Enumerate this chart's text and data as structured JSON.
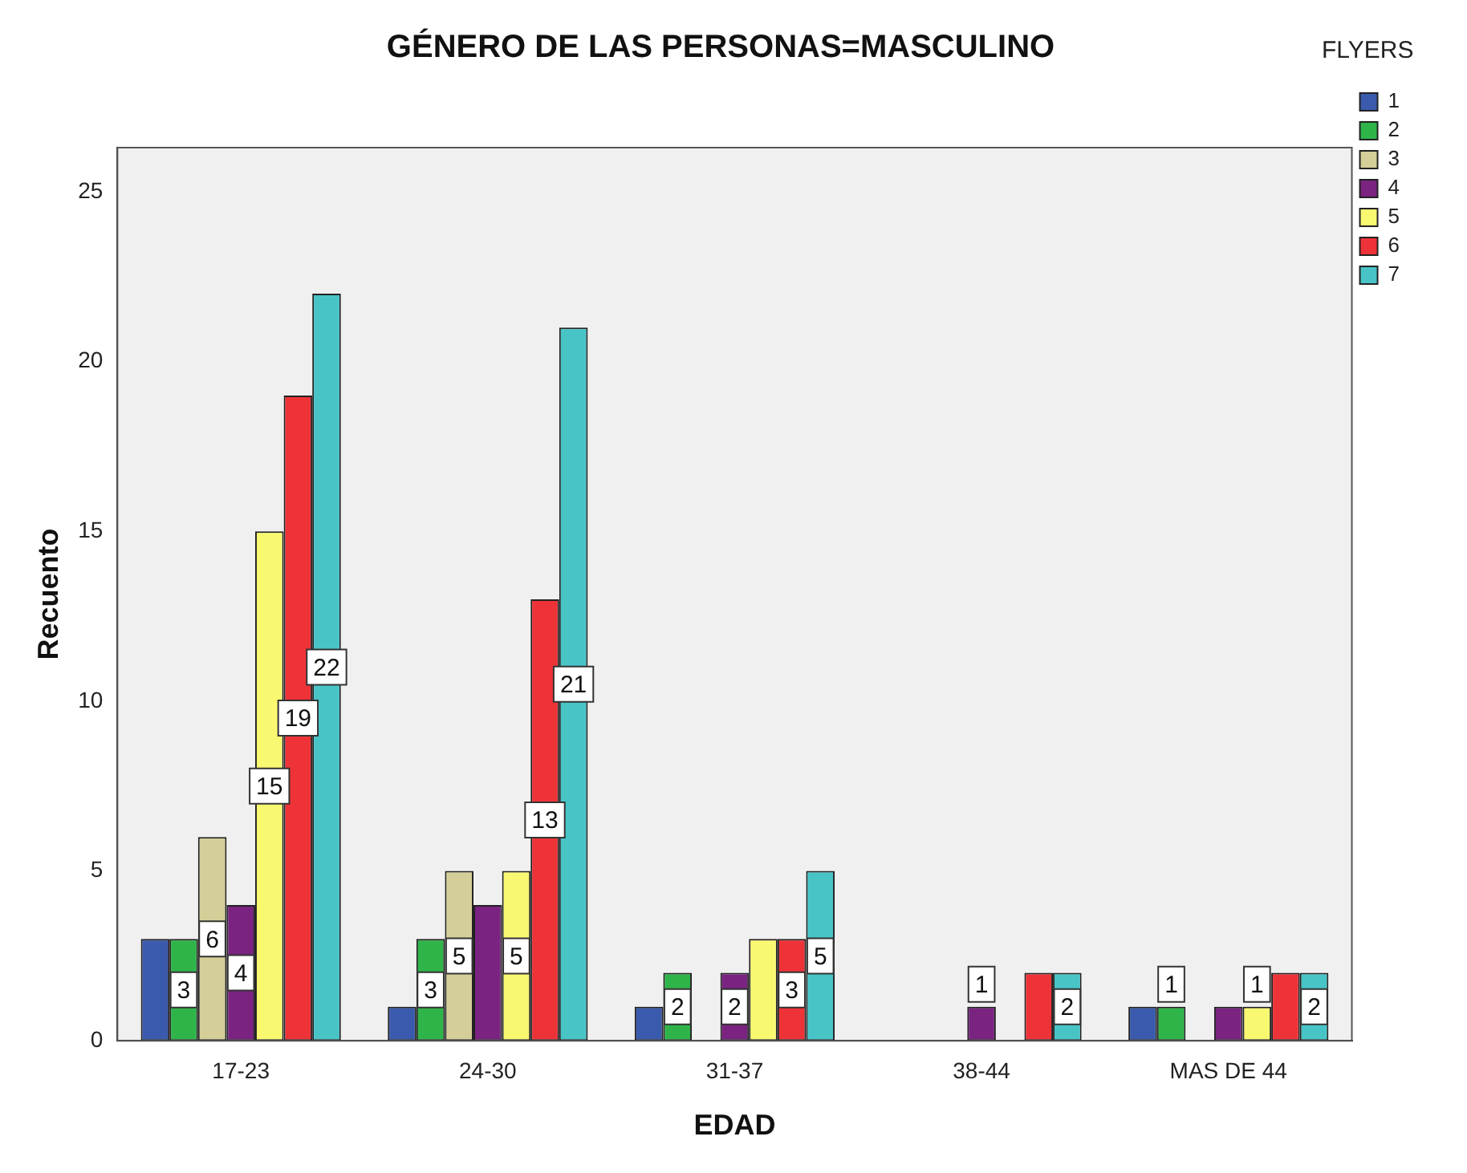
{
  "chart_data": {
    "type": "bar",
    "title": "GÉNERO DE LAS PERSONAS=MASCULINO",
    "xlabel": "EDAD",
    "ylabel": "Recuento",
    "legend_title": "FLYERS",
    "categories": [
      "17-23",
      "24-30",
      "31-37",
      "38-44",
      "MAS DE 44"
    ],
    "ylim": [
      0,
      26.3
    ],
    "yticks": [
      0,
      5,
      10,
      15,
      20,
      25
    ],
    "grid": false,
    "legend": "top right",
    "series": [
      {
        "name": "1",
        "color": "#3a5bad",
        "values": [
          3,
          1,
          1,
          0,
          1
        ],
        "value_labels": [
          null,
          null,
          null,
          null,
          null
        ]
      },
      {
        "name": "2",
        "color": "#2fb44a",
        "values": [
          3,
          3,
          2,
          0,
          1
        ],
        "value_labels": [
          "3",
          "3",
          "2",
          null,
          "1"
        ]
      },
      {
        "name": "3",
        "color": "#d4cf98",
        "values": [
          6,
          5,
          0,
          0,
          0
        ],
        "value_labels": [
          "6",
          "5",
          null,
          null,
          null
        ]
      },
      {
        "name": "4",
        "color": "#7a2381",
        "values": [
          4,
          4,
          2,
          1,
          1
        ],
        "value_labels": [
          "4",
          null,
          "2",
          "1",
          null
        ]
      },
      {
        "name": "5",
        "color": "#f9f871",
        "values": [
          15,
          5,
          3,
          0,
          1
        ],
        "value_labels": [
          "15",
          "5",
          null,
          null,
          "1"
        ]
      },
      {
        "name": "6",
        "color": "#ee3338",
        "values": [
          19,
          13,
          3,
          2,
          2
        ],
        "value_labels": [
          "19",
          "13",
          "3",
          null,
          null
        ]
      },
      {
        "name": "7",
        "color": "#48c4c7",
        "values": [
          22,
          21,
          5,
          2,
          2
        ],
        "value_labels": [
          "22",
          "21",
          "5",
          "2",
          "2"
        ]
      }
    ]
  }
}
